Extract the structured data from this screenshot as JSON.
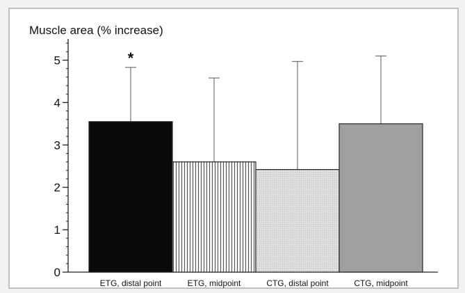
{
  "chart_data": {
    "type": "bar",
    "title": "Muscle area (% increase)",
    "xlabel": "",
    "ylabel": "",
    "categories": [
      "ETG, distal point",
      "ETG, midpoint",
      "CTG, distal point",
      "CTG, midpoint"
    ],
    "values": [
      3.55,
      2.6,
      2.42,
      3.5
    ],
    "error_upper": [
      4.83,
      4.58,
      4.97,
      5.1
    ],
    "annotations": [
      "*",
      "",
      "",
      ""
    ],
    "fills": [
      "#0a0a0a",
      "hatch-vertical",
      "#d9d9d9",
      "#a0a0a0"
    ],
    "ylim": [
      0,
      5.5
    ],
    "yticks": [
      0,
      1,
      2,
      3,
      4,
      5
    ],
    "grid": false
  }
}
